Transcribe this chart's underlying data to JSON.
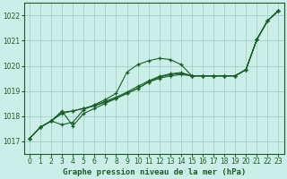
{
  "title": "Graphe pression niveau de la mer (hPa)",
  "background_color": "#cceee8",
  "grid_color": "#aad4cc",
  "line_color": "#1a5c28",
  "xlim": [
    -0.5,
    23.5
  ],
  "ylim": [
    1016.5,
    1022.5
  ],
  "yticks": [
    1017,
    1018,
    1019,
    1020,
    1021,
    1022
  ],
  "xtick_labels": [
    "0",
    "1",
    "2",
    "3",
    "4",
    "5",
    "6",
    "7",
    "8",
    "9",
    "10",
    "11",
    "12",
    "13",
    "14",
    "15",
    "16",
    "17",
    "18",
    "19",
    "20",
    "21",
    "22",
    "23"
  ],
  "series": [
    [
      1017.1,
      1017.55,
      1017.8,
      1017.65,
      1017.75,
      1018.25,
      1018.45,
      1018.65,
      1018.9,
      1019.75,
      1020.05,
      1020.2,
      1020.3,
      1020.25,
      1020.05,
      1019.6,
      1019.6,
      1019.6,
      1019.6,
      1019.6,
      1019.85,
      1021.05,
      1021.8,
      1022.2
    ],
    [
      1017.1,
      1017.55,
      1017.8,
      1018.2,
      1017.6,
      1018.1,
      1018.3,
      1018.5,
      1018.7,
      1018.9,
      1019.1,
      1019.35,
      1019.5,
      1019.6,
      1019.65,
      1019.6,
      1019.6,
      1019.6,
      1019.6,
      1019.6,
      1019.85,
      1021.05,
      1021.8,
      1022.2
    ],
    [
      1017.1,
      1017.55,
      1017.8,
      1018.1,
      1018.2,
      1018.3,
      1018.4,
      1018.55,
      1018.7,
      1018.9,
      1019.1,
      1019.35,
      1019.55,
      1019.65,
      1019.7,
      1019.6,
      1019.6,
      1019.6,
      1019.6,
      1019.6,
      1019.85,
      1021.05,
      1021.8,
      1022.2
    ],
    [
      1017.1,
      1017.55,
      1017.8,
      1018.15,
      1018.2,
      1018.3,
      1018.42,
      1018.58,
      1018.75,
      1018.95,
      1019.18,
      1019.4,
      1019.58,
      1019.68,
      1019.73,
      1019.6,
      1019.6,
      1019.6,
      1019.6,
      1019.6,
      1019.85,
      1021.05,
      1021.8,
      1022.2
    ]
  ],
  "title_fontsize": 6.5,
  "tick_fontsize": 5.5
}
